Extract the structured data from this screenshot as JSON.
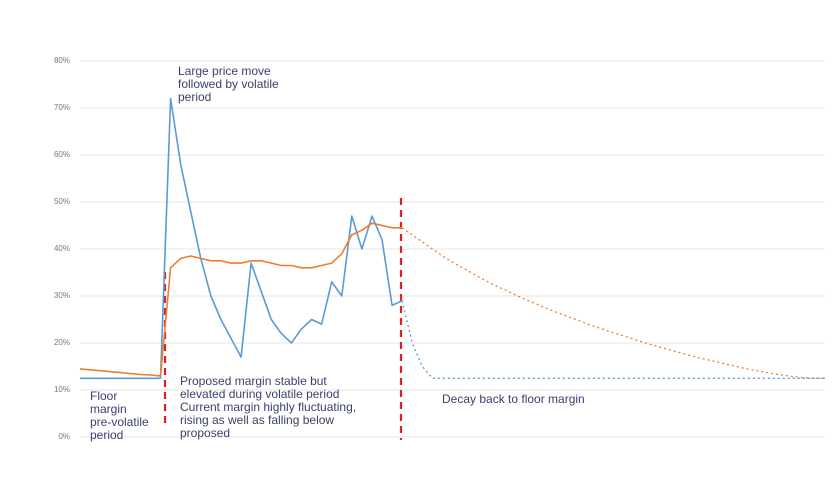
{
  "chart_data": {
    "type": "line",
    "ylim": [
      0,
      80
    ],
    "yticks": [
      {
        "value": 0,
        "label": "0%"
      },
      {
        "value": 10,
        "label": "10%"
      },
      {
        "value": 20,
        "label": "20%"
      },
      {
        "value": 30,
        "label": "30%"
      },
      {
        "value": 40,
        "label": "40%"
      },
      {
        "value": 50,
        "label": "50%"
      },
      {
        "value": 60,
        "label": "60%"
      },
      {
        "value": 70,
        "label": "70%"
      },
      {
        "value": 80,
        "label": "80%"
      }
    ],
    "grid": true,
    "categories": [
      null,
      null,
      null,
      null,
      null,
      null,
      null,
      null,
      null,
      null,
      null,
      null,
      null,
      null,
      null,
      null,
      null,
      null,
      null,
      null,
      null,
      null,
      null,
      null,
      null,
      null,
      null,
      null,
      null,
      null,
      null,
      null,
      null,
      null,
      null,
      null,
      null,
      null,
      null,
      null,
      null,
      null,
      null,
      null,
      null,
      null,
      null,
      null,
      null,
      null,
      null,
      null,
      null,
      null,
      null,
      null,
      null,
      null,
      null,
      null,
      null,
      null,
      null,
      null,
      null,
      null,
      null,
      null,
      null,
      null,
      null,
      null,
      null,
      null,
      null
    ],
    "series": [
      {
        "color": "#5b9bd5",
        "style": "solid",
        "values": [
          12.5,
          12.5,
          12.5,
          12.5,
          12.5,
          12.5,
          12.5,
          12.5,
          12.5,
          72,
          58,
          48,
          38,
          30,
          25,
          21,
          17,
          37,
          31,
          25,
          22,
          20,
          23,
          25,
          24,
          33,
          30,
          47,
          40,
          47,
          42,
          28,
          29,
          null,
          null,
          null,
          null,
          null,
          null,
          null,
          null,
          null,
          null,
          null,
          null,
          null,
          null,
          null,
          null,
          null,
          null,
          null,
          null,
          null,
          null,
          null,
          null,
          null,
          null,
          null,
          null,
          null,
          null,
          null,
          null,
          null,
          null,
          null,
          null,
          null,
          null,
          null,
          null,
          null,
          null
        ]
      },
      {
        "color": "#ed7d31",
        "style": "solid",
        "values": [
          14.5,
          14.3,
          14.1,
          13.9,
          13.7,
          13.5,
          13.3,
          13.2,
          13,
          36,
          38,
          38.5,
          38,
          37.5,
          37.5,
          37,
          37,
          37.5,
          37.5,
          37,
          36.5,
          36.5,
          36,
          36,
          36.5,
          37,
          39,
          43,
          44,
          45.5,
          45,
          44.5,
          44.5,
          null,
          null,
          null,
          null,
          null,
          null,
          null,
          null,
          null,
          null,
          null,
          null,
          null,
          null,
          null,
          null,
          null,
          null,
          null,
          null,
          null,
          null,
          null,
          null,
          null,
          null,
          null,
          null,
          null,
          null,
          null,
          null,
          null,
          null,
          null,
          null,
          null,
          null,
          null,
          null,
          null,
          null
        ]
      },
      {
        "color": "#5b9bd5",
        "style": "dotted",
        "values": [
          null,
          null,
          null,
          null,
          null,
          null,
          null,
          null,
          null,
          null,
          null,
          null,
          null,
          null,
          null,
          null,
          null,
          null,
          null,
          null,
          null,
          null,
          null,
          null,
          null,
          null,
          null,
          null,
          null,
          null,
          null,
          null,
          29,
          20,
          15,
          12.5,
          12.5,
          12.5,
          12.5,
          12.5,
          12.5,
          12.5,
          12.5,
          12.5,
          12.5,
          12.5,
          12.5,
          12.5,
          12.5,
          12.5,
          12.5,
          12.5,
          12.5,
          12.5,
          12.5,
          12.5,
          12.5,
          12.5,
          12.5,
          12.5,
          12.5,
          12.5,
          12.5,
          12.5,
          12.5,
          12.5,
          12.5,
          12.5,
          12.5,
          12.5,
          12.5,
          12.5,
          12.5,
          12.5,
          12.5
        ]
      },
      {
        "color": "#ed7d31",
        "style": "dotted",
        "values": [
          null,
          null,
          null,
          null,
          null,
          null,
          null,
          null,
          null,
          null,
          null,
          null,
          null,
          null,
          null,
          null,
          null,
          null,
          null,
          null,
          null,
          null,
          null,
          null,
          null,
          null,
          null,
          null,
          null,
          null,
          null,
          null,
          44.5,
          43,
          41.5,
          40,
          38.5,
          37.2,
          36,
          34.8,
          33.6,
          32.5,
          31.5,
          30.5,
          29.5,
          28.6,
          27.7,
          26.8,
          26,
          25.2,
          24.4,
          23.6,
          22.9,
          22.2,
          21.5,
          20.8,
          20.1,
          19.5,
          18.9,
          18.3,
          17.7,
          17.1,
          16.6,
          16.1,
          15.6,
          15.1,
          14.6,
          14.2,
          13.8,
          13.4,
          13.1,
          12.8,
          12.6,
          12.5,
          12.5
        ]
      }
    ],
    "annotations": [
      [
        "Large price move",
        "followed by volatile",
        "period"
      ],
      [
        "Floor",
        "margin",
        "pre-volatile",
        "period"
      ],
      [
        "Proposed margin stable but",
        "elevated during volatile period",
        "Current margin highly fluctuating,",
        "rising as well as falling below",
        "proposed"
      ],
      [
        "Decay back to floor margin"
      ]
    ]
  }
}
